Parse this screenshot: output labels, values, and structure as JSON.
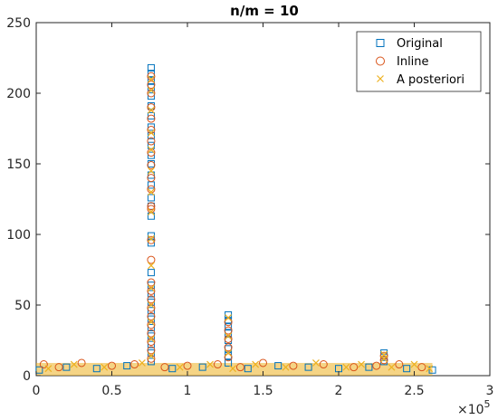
{
  "chart_data": {
    "type": "scatter",
    "title": "n/m = 10",
    "xlabel": "",
    "ylabel": "",
    "xlim": [
      0,
      300000
    ],
    "ylim": [
      0,
      250
    ],
    "x_ticks": [
      0,
      50000,
      100000,
      150000,
      200000,
      250000,
      300000
    ],
    "x_tick_labels": [
      "0",
      "0.5",
      "1",
      "1.5",
      "2",
      "2.5",
      "3"
    ],
    "x_multiplier": "×10",
    "x_multiplier_exponent": "5",
    "y_ticks": [
      0,
      50,
      100,
      150,
      200,
      250
    ],
    "y_tick_labels": [
      "0",
      "50",
      "100",
      "150",
      "200",
      "250"
    ],
    "grid": false,
    "legend_position": "top-right",
    "series": [
      {
        "name": "Original",
        "marker": "square",
        "color": "#0072BD",
        "points": [
          [
            76000,
            218
          ],
          [
            76000,
            214
          ],
          [
            76000,
            209
          ],
          [
            76000,
            204
          ],
          [
            76000,
            198
          ],
          [
            76000,
            191
          ],
          [
            76000,
            184
          ],
          [
            76000,
            176
          ],
          [
            76000,
            170
          ],
          [
            76000,
            163
          ],
          [
            76000,
            156
          ],
          [
            76000,
            150
          ],
          [
            76000,
            142
          ],
          [
            76000,
            135
          ],
          [
            76000,
            126
          ],
          [
            76000,
            120
          ],
          [
            76000,
            113
          ],
          [
            76000,
            99
          ],
          [
            76000,
            94
          ],
          [
            76000,
            73
          ],
          [
            76000,
            64
          ],
          [
            76000,
            58
          ],
          [
            76000,
            52
          ],
          [
            76000,
            46
          ],
          [
            76000,
            40
          ],
          [
            76000,
            34
          ],
          [
            76000,
            28
          ],
          [
            76000,
            22
          ],
          [
            76000,
            16
          ],
          [
            76000,
            10
          ],
          [
            127000,
            43
          ],
          [
            127000,
            39
          ],
          [
            127000,
            35
          ],
          [
            127000,
            30
          ],
          [
            127000,
            25
          ],
          [
            127000,
            19
          ],
          [
            127000,
            14
          ],
          [
            127000,
            9
          ],
          [
            230000,
            16
          ],
          [
            230000,
            13
          ],
          [
            230000,
            10
          ],
          [
            2000,
            4
          ],
          [
            20000,
            6
          ],
          [
            40000,
            5
          ],
          [
            60000,
            7
          ],
          [
            90000,
            5
          ],
          [
            110000,
            6
          ],
          [
            140000,
            5
          ],
          [
            160000,
            7
          ],
          [
            180000,
            6
          ],
          [
            200000,
            5
          ],
          [
            220000,
            6
          ],
          [
            245000,
            5
          ],
          [
            262000,
            4
          ]
        ]
      },
      {
        "name": "Inline",
        "marker": "circle",
        "color": "#D95319",
        "points": [
          [
            76000,
            212
          ],
          [
            76000,
            206
          ],
          [
            76000,
            200
          ],
          [
            76000,
            190
          ],
          [
            76000,
            182
          ],
          [
            76000,
            174
          ],
          [
            76000,
            166
          ],
          [
            76000,
            158
          ],
          [
            76000,
            149
          ],
          [
            76000,
            140
          ],
          [
            76000,
            132
          ],
          [
            76000,
            120
          ],
          [
            76000,
            118
          ],
          [
            76000,
            96
          ],
          [
            76000,
            82
          ],
          [
            76000,
            66
          ],
          [
            76000,
            60
          ],
          [
            76000,
            54
          ],
          [
            76000,
            48
          ],
          [
            76000,
            42
          ],
          [
            76000,
            36
          ],
          [
            76000,
            30
          ],
          [
            76000,
            24
          ],
          [
            76000,
            18
          ],
          [
            76000,
            12
          ],
          [
            127000,
            38
          ],
          [
            127000,
            32
          ],
          [
            127000,
            26
          ],
          [
            127000,
            20
          ],
          [
            127000,
            13
          ],
          [
            230000,
            14
          ],
          [
            230000,
            11
          ],
          [
            5000,
            8
          ],
          [
            15000,
            6
          ],
          [
            30000,
            9
          ],
          [
            50000,
            7
          ],
          [
            65000,
            8
          ],
          [
            85000,
            6
          ],
          [
            100000,
            7
          ],
          [
            120000,
            8
          ],
          [
            135000,
            6
          ],
          [
            150000,
            9
          ],
          [
            170000,
            7
          ],
          [
            190000,
            8
          ],
          [
            210000,
            6
          ],
          [
            225000,
            7
          ],
          [
            240000,
            8
          ],
          [
            255000,
            6
          ]
        ]
      },
      {
        "name": "A posteriori",
        "marker": "x",
        "color": "#EDB120",
        "points": [
          [
            76000,
            210
          ],
          [
            76000,
            202
          ],
          [
            76000,
            188
          ],
          [
            76000,
            172
          ],
          [
            76000,
            160
          ],
          [
            76000,
            145
          ],
          [
            76000,
            130
          ],
          [
            76000,
            116
          ],
          [
            76000,
            97
          ],
          [
            76000,
            78
          ],
          [
            76000,
            62
          ],
          [
            76000,
            50
          ],
          [
            76000,
            38
          ],
          [
            76000,
            26
          ],
          [
            76000,
            14
          ],
          [
            127000,
            41
          ],
          [
            127000,
            28
          ],
          [
            127000,
            16
          ],
          [
            230000,
            15
          ],
          [
            230000,
            12
          ],
          [
            8000,
            5
          ],
          [
            25000,
            8
          ],
          [
            45000,
            6
          ],
          [
            70000,
            9
          ],
          [
            95000,
            6
          ],
          [
            115000,
            8
          ],
          [
            130000,
            5
          ],
          [
            145000,
            8
          ],
          [
            165000,
            6
          ],
          [
            185000,
            9
          ],
          [
            205000,
            6
          ],
          [
            215000,
            8
          ],
          [
            235000,
            6
          ],
          [
            250000,
            8
          ],
          [
            260000,
            5
          ]
        ]
      }
    ]
  }
}
